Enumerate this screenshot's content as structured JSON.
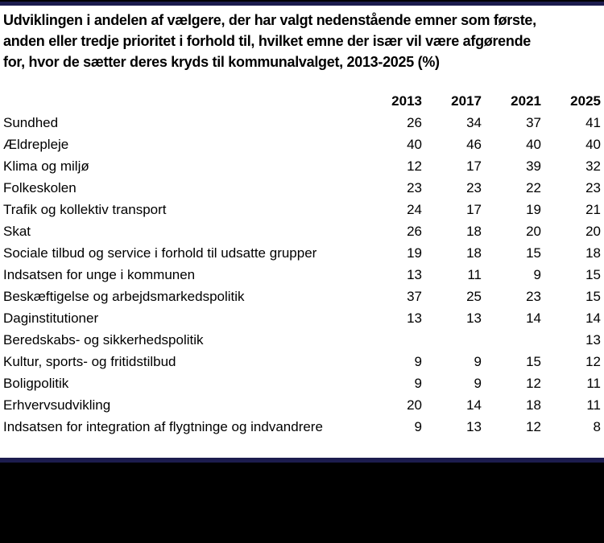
{
  "title": {
    "lines": [
      "Udviklingen i andelen af vælgere, der har valgt nedenstående emner som første,",
      "anden eller tredje prioritet i forhold til, hvilket emne der især vil være afgørende",
      "for, hvor de sætter deres kryds til kommunalvalget, 2013-2025 (%)"
    ],
    "full": "Udviklingen i andelen af vælgere, der har valgt nedenstående emner som første, anden eller tredje prioritet i forhold til, hvilket emne der især vil være afgørende for, hvor de sætter deres kryds til kommunalvalget, 2013-2025 (%)"
  },
  "chart_data": {
    "type": "table",
    "columns": [
      "2013",
      "2017",
      "2021",
      "2025"
    ],
    "rows": [
      {
        "label": "Sundhed",
        "values": [
          "26",
          "34",
          "37",
          "41"
        ]
      },
      {
        "label": "Ældrepleje",
        "values": [
          "40",
          "46",
          "40",
          "40"
        ]
      },
      {
        "label": "Klima og miljø",
        "values": [
          "12",
          "17",
          "39",
          "32"
        ]
      },
      {
        "label": "Folkeskolen",
        "values": [
          "23",
          "23",
          "22",
          "23"
        ]
      },
      {
        "label": "Trafik og kollektiv transport",
        "values": [
          "24",
          "17",
          "19",
          "21"
        ]
      },
      {
        "label": "Skat",
        "values": [
          "26",
          "18",
          "20",
          "20"
        ]
      },
      {
        "label": "Sociale tilbud og service i forhold til udsatte grupper",
        "values": [
          "19",
          "18",
          "15",
          "18"
        ]
      },
      {
        "label": "Indsatsen for unge i kommunen",
        "values": [
          "13",
          "11",
          "9",
          "15"
        ]
      },
      {
        "label": "Beskæftigelse og arbejdsmarkedspolitik",
        "values": [
          "37",
          "25",
          "23",
          "15"
        ]
      },
      {
        "label": "Daginstitutioner",
        "values": [
          "13",
          "13",
          "14",
          "14"
        ]
      },
      {
        "label": "Beredskabs- og sikkerhedspolitik",
        "values": [
          "",
          "",
          "",
          "13"
        ]
      },
      {
        "label": "Kultur, sports- og fritidstilbud",
        "values": [
          "9",
          "9",
          "15",
          "12"
        ]
      },
      {
        "label": "Boligpolitik",
        "values": [
          "9",
          "9",
          "12",
          "11"
        ]
      },
      {
        "label": "Erhvervsudvikling",
        "values": [
          "20",
          "14",
          "18",
          "11"
        ]
      },
      {
        "label": "Indsatsen for integration af flygtninge og indvandrere",
        "values": [
          "9",
          "13",
          "12",
          "8"
        ]
      }
    ],
    "title": "Udviklingen i andelen af vælgere, der har valgt nedenstående emner som første, anden eller tredje prioritet i forhold til, hvilket emne der især vil være afgørende for, hvor de sætter deres kryds til kommunalvalget, 2013-2025 (%)",
    "legend": "none",
    "grid": false
  },
  "colors": {
    "border_navy": "#1c1c4e",
    "border_black": "#000000",
    "footer_bg": "#000000",
    "background": "#ffffff",
    "text": "#000000"
  }
}
